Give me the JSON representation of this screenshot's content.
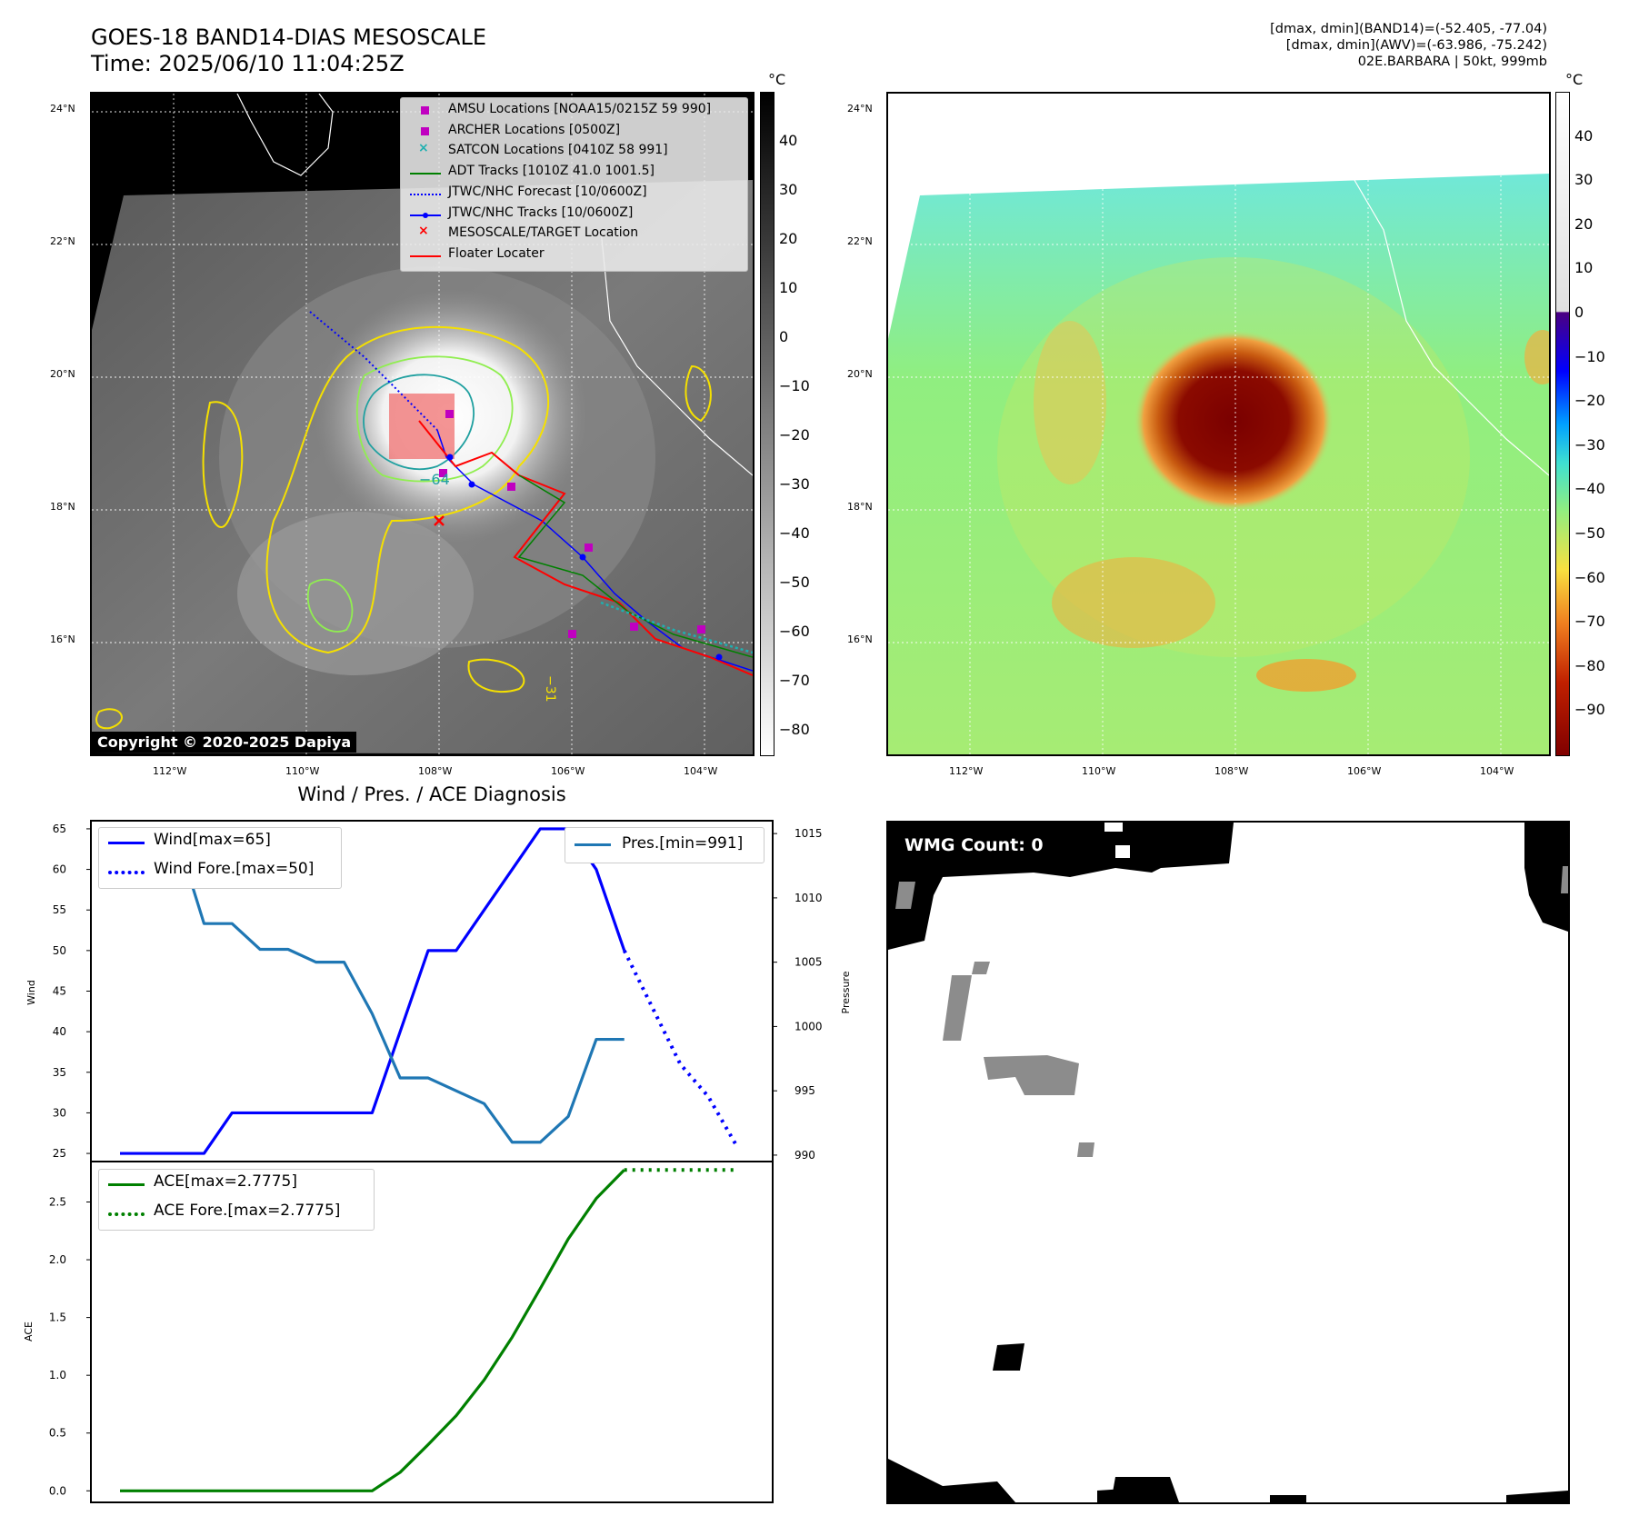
{
  "header": {
    "title_line1": "GOES-18 BAND14-DIAS MESOSCALE",
    "title_line2": "Time: 2025/06/10 11:04:25Z",
    "info_line1": "[dmax, dmin](BAND14)=(-52.405, -77.04)",
    "info_line2": "[dmax, dmin](AWV)=(-63.986, -75.242)",
    "info_line3": "02E.BARBARA | 50kt, 999mb"
  },
  "map_axes": {
    "lat_labels": [
      "24°N",
      "22°N",
      "20°N",
      "18°N",
      "16°N"
    ],
    "lon_labels": [
      "112°W",
      "110°W",
      "108°W",
      "106°W",
      "104°W"
    ]
  },
  "colorbar_ir": {
    "unit": "°C",
    "ticks": [
      "40",
      "30",
      "20",
      "10",
      "0",
      "−10",
      "−20",
      "−30",
      "−40",
      "−50",
      "−60",
      "−70",
      "−80"
    ]
  },
  "colorbar_awv": {
    "unit": "°C",
    "ticks": [
      "40",
      "30",
      "20",
      "10",
      "0",
      "−10",
      "−20",
      "−30",
      "−40",
      "−50",
      "−60",
      "−70",
      "−80",
      "−90"
    ]
  },
  "map_legend": [
    {
      "label": "AMSU Locations [NOAA15/0215Z 59 990]",
      "kind": "square",
      "color": "#c000c0"
    },
    {
      "label": "ARCHER Locations [0500Z]",
      "kind": "square",
      "color": "#c000c0"
    },
    {
      "label": "SATCON Locations [0410Z 58 991]",
      "kind": "x",
      "color": "#1fb0b0"
    },
    {
      "label": "ADT Tracks [1010Z 41.0 1001.5]",
      "kind": "line",
      "color": "#008000"
    },
    {
      "label": "JTWC/NHC Forecast [10/0600Z]",
      "kind": "dotted",
      "color": "#0000ff"
    },
    {
      "label": "JTWC/NHC Tracks [10/0600Z]",
      "kind": "linedot",
      "color": "#0000ff"
    },
    {
      "label": "MESOSCALE/TARGET Location",
      "kind": "x",
      "color": "#ff0000"
    },
    {
      "label": "Floater Locater",
      "kind": "line",
      "color": "#ff0000"
    }
  ],
  "map_annotations": {
    "contour_label_a": "−64",
    "contour_label_b": "−31",
    "copyright": "Copyright © 2020-2025 Dapiya"
  },
  "diagnosis": {
    "title": "Wind / Pres. / ACE Diagnosis",
    "wind_ylabel": "Wind",
    "pres_ylabel": "Pressure",
    "ace_ylabel": "ACE",
    "legend_wind": "Wind[max=65]",
    "legend_wind_fore": "Wind Fore.[max=50]",
    "legend_pres": "Pres.[min=991]",
    "legend_ace": "ACE[max=2.7775]",
    "legend_ace_fore": "ACE Fore.[max=2.7775]",
    "wind_ticks": [
      "65",
      "60",
      "55",
      "50",
      "45",
      "40",
      "35",
      "30",
      "25"
    ],
    "pres_ticks": [
      "1015",
      "1010",
      "1005",
      "1000",
      "995",
      "990"
    ],
    "ace_ticks": [
      "2.5",
      "2.0",
      "1.5",
      "1.0",
      "0.5",
      "0.0"
    ]
  },
  "wmg": {
    "label": "WMG Count: 0"
  },
  "chart_data": [
    {
      "type": "line",
      "title": "Wind / Pres. / ACE Diagnosis",
      "ylabel": "Wind",
      "ylim": [
        24,
        66
      ],
      "x": [
        0,
        1,
        2,
        3,
        4,
        5,
        6,
        7,
        8,
        9,
        10,
        11,
        12,
        13,
        14,
        15,
        16,
        17,
        18,
        19,
        20,
        21,
        22
      ],
      "series": [
        {
          "name": "Wind[max=65]",
          "color": "#0000ff",
          "style": "solid",
          "x": [
            0,
            1,
            2,
            3,
            4,
            5,
            6,
            7,
            8,
            9,
            10,
            11,
            12,
            13,
            14,
            15,
            16,
            17,
            18
          ],
          "values": [
            25,
            25,
            25,
            25,
            30,
            30,
            30,
            30,
            30,
            30,
            40,
            50,
            50,
            55,
            60,
            65,
            65,
            60,
            50
          ]
        },
        {
          "name": "Wind Fore.[max=50]",
          "color": "#0000ff",
          "style": "dotted",
          "x": [
            18,
            19,
            20,
            21,
            22
          ],
          "values": [
            50,
            43,
            36,
            32,
            26
          ]
        }
      ]
    },
    {
      "type": "line",
      "ylabel": "Pressure",
      "ylim": [
        989.5,
        1016
      ],
      "series": [
        {
          "name": "Pres.[min=991]",
          "color": "#1f77b4",
          "style": "solid",
          "x": [
            0,
            1,
            2,
            3,
            4,
            5,
            6,
            7,
            8,
            9,
            10,
            11,
            12,
            13,
            14,
            15,
            16,
            17,
            18
          ],
          "values": [
            1015,
            1015,
            1015,
            1008,
            1008,
            1006,
            1006,
            1005,
            1005,
            1001,
            996,
            996,
            995,
            994,
            991,
            991,
            993,
            999,
            999
          ]
        }
      ]
    },
    {
      "type": "line",
      "ylabel": "ACE",
      "ylim": [
        -0.1,
        2.85
      ],
      "series": [
        {
          "name": "ACE[max=2.7775]",
          "color": "#008000",
          "style": "solid",
          "x": [
            0,
            1,
            2,
            3,
            4,
            5,
            6,
            7,
            8,
            9,
            10,
            11,
            12,
            13,
            14,
            15,
            16,
            17,
            18
          ],
          "values": [
            0,
            0,
            0,
            0,
            0,
            0,
            0,
            0,
            0,
            0,
            0.16,
            0.4,
            0.65,
            0.96,
            1.33,
            1.75,
            2.18,
            2.53,
            2.7775
          ]
        },
        {
          "name": "ACE Fore.[max=2.7775]",
          "color": "#008000",
          "style": "dotted",
          "x": [
            18,
            19,
            20,
            21,
            22
          ],
          "values": [
            2.7775,
            2.7775,
            2.7775,
            2.7775,
            2.7775
          ]
        }
      ]
    }
  ]
}
